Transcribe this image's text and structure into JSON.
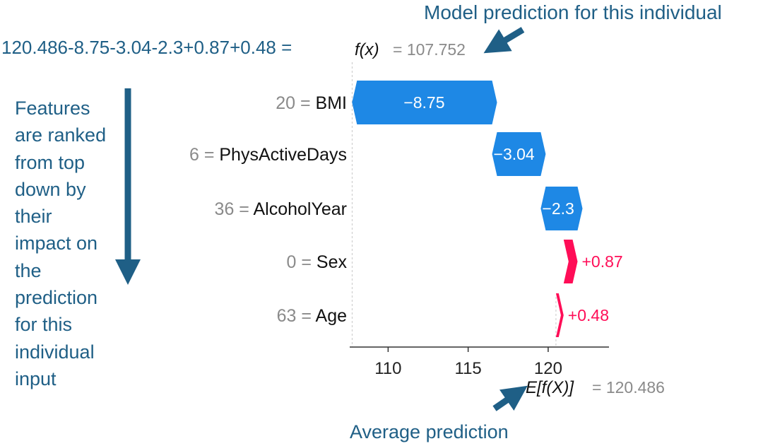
{
  "annotations": {
    "model_prediction": "Model prediction for this individual",
    "average_prediction": "Average prediction",
    "equation": "120.486-8.75-3.04-2.3+0.87+0.48 =",
    "ranking_note_lines": [
      "Features",
      "are ranked",
      "from top",
      "down by",
      "their",
      "impact on",
      "the",
      "prediction",
      "for this",
      "individual",
      "input"
    ]
  },
  "chart_data": {
    "type": "waterfall",
    "base_value": 120.486,
    "base_label": "E[f(X)]",
    "base_value_text": "= 120.486",
    "output_value": 107.752,
    "output_label": "f(x)",
    "output_value_text": "= 107.752",
    "xlim": [
      107.6,
      123.8
    ],
    "xticks": [
      110,
      115,
      120
    ],
    "xtick_labels": [
      "110",
      "115",
      "120"
    ],
    "features": [
      {
        "value_text": "20",
        "name": "BMI",
        "contribution": -8.75,
        "label": "−8.75"
      },
      {
        "value_text": "6",
        "name": "PhysActiveDays",
        "contribution": -3.04,
        "label": "−3.04"
      },
      {
        "value_text": "36",
        "name": "AlcoholYear",
        "contribution": -2.3,
        "label": "−2.3"
      },
      {
        "value_text": "0",
        "name": "Sex",
        "contribution": 0.87,
        "label": "+0.87"
      },
      {
        "value_text": "63",
        "name": "Age",
        "contribution": 0.48,
        "label": "+0.48"
      }
    ],
    "colors": {
      "negative": "#1e88e5",
      "positive": "#ff0d57",
      "axis": "#333333",
      "muted": "#8a8a8a"
    }
  }
}
